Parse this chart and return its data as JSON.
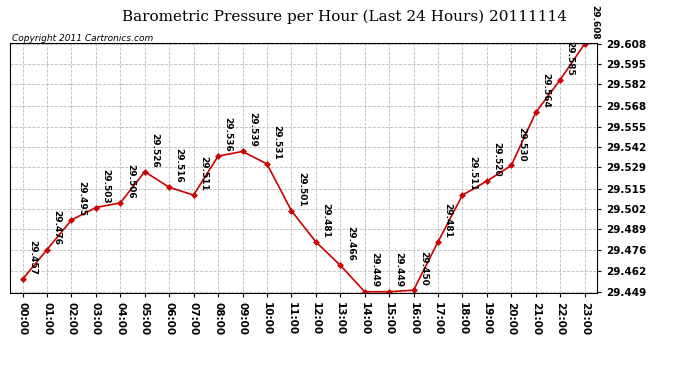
{
  "title": "Barometric Pressure per Hour (Last 24 Hours) 20111114",
  "copyright": "Copyright 2011 Cartronics.com",
  "hours": [
    "00:00",
    "01:00",
    "02:00",
    "03:00",
    "04:00",
    "05:00",
    "06:00",
    "07:00",
    "08:00",
    "09:00",
    "10:00",
    "11:00",
    "12:00",
    "13:00",
    "14:00",
    "15:00",
    "16:00",
    "17:00",
    "18:00",
    "19:00",
    "20:00",
    "21:00",
    "22:00",
    "23:00"
  ],
  "values": [
    29.457,
    29.476,
    29.495,
    29.503,
    29.506,
    29.526,
    29.516,
    29.511,
    29.536,
    29.539,
    29.531,
    29.501,
    29.481,
    29.466,
    29.449,
    29.449,
    29.45,
    29.481,
    29.511,
    29.52,
    29.53,
    29.564,
    29.585,
    29.608
  ],
  "ylim_min": 29.449,
  "ylim_max": 29.608,
  "ytick_values": [
    29.449,
    29.462,
    29.476,
    29.489,
    29.502,
    29.515,
    29.529,
    29.542,
    29.555,
    29.568,
    29.582,
    29.595,
    29.608
  ],
  "line_color": "#cc0000",
  "marker_color": "#cc0000",
  "bg_color": "#ffffff",
  "grid_color": "#bbbbbb",
  "title_fontsize": 11,
  "copyright_fontsize": 6.5,
  "label_fontsize": 6.5,
  "tick_fontsize": 7.5
}
